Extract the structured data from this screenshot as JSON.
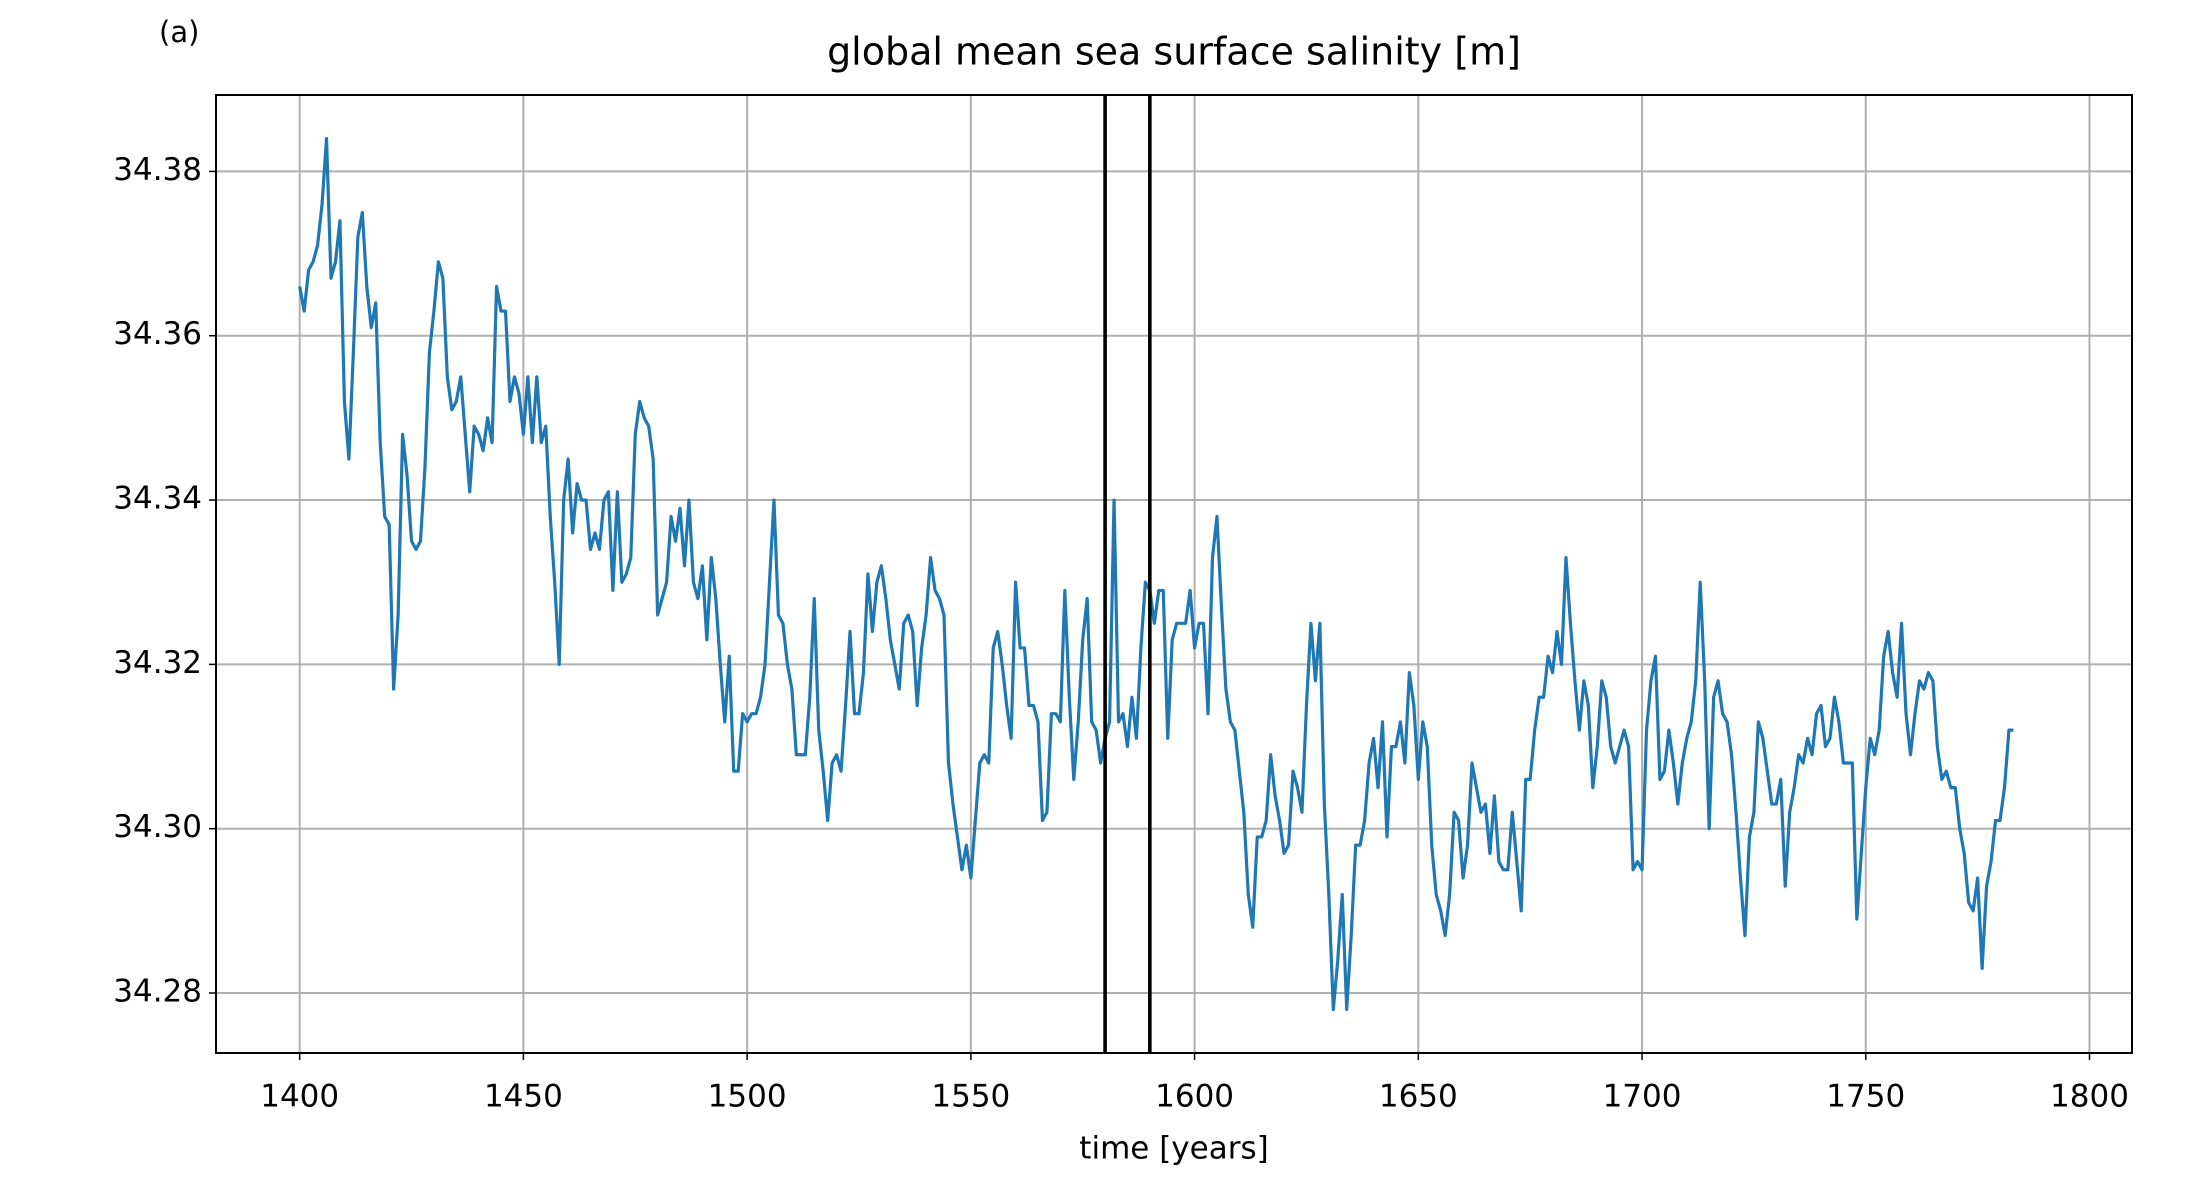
{
  "chart_data": {
    "type": "line",
    "title": "global mean sea surface salinity [m]",
    "panel_label": "(a)",
    "xlabel": "time [years]",
    "xlim": [
      1381.3,
      1809.5
    ],
    "ylim": [
      34.2727,
      34.3893
    ],
    "xticks": [
      1400,
      1450,
      1500,
      1550,
      1600,
      1650,
      1700,
      1750,
      1800
    ],
    "yticks": [
      34.28,
      {
        "value": 34.3,
        "label": "34.30"
      },
      34.32,
      34.34,
      34.36,
      34.38
    ],
    "grid": true,
    "vlines": [
      1580,
      1590
    ],
    "vline_color": "#000000",
    "x": [
      1400,
      1401,
      1402,
      1403,
      1404,
      1405,
      1406,
      1407,
      1408,
      1409,
      1410,
      1411,
      1412,
      1413,
      1414,
      1415,
      1416,
      1417,
      1418,
      1419,
      1420,
      1421,
      1422,
      1423,
      1424,
      1425,
      1426,
      1427,
      1428,
      1429,
      1430,
      1431,
      1432,
      1433,
      1434,
      1435,
      1436,
      1437,
      1438,
      1439,
      1440,
      1441,
      1442,
      1443,
      1444,
      1445,
      1446,
      1447,
      1448,
      1449,
      1450,
      1451,
      1452,
      1453,
      1454,
      1455,
      1456,
      1457,
      1458,
      1459,
      1460,
      1461,
      1462,
      1463,
      1464,
      1465,
      1466,
      1467,
      1468,
      1469,
      1470,
      1471,
      1472,
      1473,
      1474,
      1475,
      1476,
      1477,
      1478,
      1479,
      1480,
      1481,
      1482,
      1483,
      1484,
      1485,
      1486,
      1487,
      1488,
      1489,
      1490,
      1491,
      1492,
      1493,
      1494,
      1495,
      1496,
      1497,
      1498,
      1499,
      1500,
      1501,
      1502,
      1503,
      1504,
      1505,
      1506,
      1507,
      1508,
      1509,
      1510,
      1511,
      1512,
      1513,
      1514,
      1515,
      1516,
      1517,
      1518,
      1519,
      1520,
      1521,
      1522,
      1523,
      1524,
      1525,
      1526,
      1527,
      1528,
      1529,
      1530,
      1531,
      1532,
      1533,
      1534,
      1535,
      1536,
      1537,
      1538,
      1539,
      1540,
      1541,
      1542,
      1543,
      1544,
      1545,
      1546,
      1547,
      1548,
      1549,
      1550,
      1551,
      1552,
      1553,
      1554,
      1555,
      1556,
      1557,
      1558,
      1559,
      1560,
      1561,
      1562,
      1563,
      1564,
      1565,
      1566,
      1567,
      1568,
      1569,
      1570,
      1571,
      1572,
      1573,
      1574,
      1575,
      1576,
      1577,
      1578,
      1579,
      1580,
      1581,
      1582,
      1583,
      1584,
      1585,
      1586,
      1587,
      1588,
      1589,
      1590,
      1591,
      1592,
      1593,
      1594,
      1595,
      1596,
      1597,
      1598,
      1599,
      1600,
      1601,
      1602,
      1603,
      1604,
      1605,
      1606,
      1607,
      1608,
      1609,
      1610,
      1611,
      1612,
      1613,
      1614,
      1615,
      1616,
      1617,
      1618,
      1619,
      1620,
      1621,
      1622,
      1623,
      1624,
      1625,
      1626,
      1627,
      1628,
      1629,
      1630,
      1631,
      1632,
      1633,
      1634,
      1635,
      1636,
      1637,
      1638,
      1639,
      1640,
      1641,
      1642,
      1643,
      1644,
      1645,
      1646,
      1647,
      1648,
      1649,
      1650,
      1651,
      1652,
      1653,
      1654,
      1655,
      1656,
      1657,
      1658,
      1659,
      1660,
      1661,
      1662,
      1663,
      1664,
      1665,
      1666,
      1667,
      1668,
      1669,
      1670,
      1671,
      1672,
      1673,
      1674,
      1675,
      1676,
      1677,
      1678,
      1679,
      1680,
      1681,
      1682,
      1683,
      1684,
      1685,
      1686,
      1687,
      1688,
      1689,
      1690,
      1691,
      1692,
      1693,
      1694,
      1695,
      1696,
      1697,
      1698,
      1699,
      1700,
      1701,
      1702,
      1703,
      1704,
      1705,
      1706,
      1707,
      1708,
      1709,
      1710,
      1711,
      1712,
      1713,
      1714,
      1715,
      1716,
      1717,
      1718,
      1719,
      1720,
      1721,
      1722,
      1723,
      1724,
      1725,
      1726,
      1727,
      1728,
      1729,
      1730,
      1731,
      1732,
      1733,
      1734,
      1735,
      1736,
      1737,
      1738,
      1739,
      1740,
      1741,
      1742,
      1743,
      1744,
      1745,
      1746,
      1747,
      1748,
      1749,
      1750,
      1751,
      1752,
      1753,
      1754,
      1755,
      1756,
      1757,
      1758,
      1759,
      1760,
      1761,
      1762,
      1763,
      1764,
      1765,
      1766,
      1767,
      1768,
      1769,
      1770,
      1771,
      1772,
      1773,
      1774,
      1775,
      1776,
      1777,
      1778,
      1779,
      1780,
      1781,
      1782,
      1783
    ],
    "series": [
      {
        "color": "#1f77b4",
        "values": [
          34.366,
          34.363,
          34.368,
          34.369,
          34.371,
          34.376,
          34.384,
          34.367,
          34.369,
          34.374,
          34.352,
          34.345,
          34.358,
          34.372,
          34.375,
          34.366,
          34.361,
          34.364,
          34.347,
          34.338,
          34.337,
          34.317,
          34.326,
          34.348,
          34.343,
          34.335,
          34.334,
          34.335,
          34.344,
          34.358,
          34.363,
          34.369,
          34.367,
          34.355,
          34.351,
          34.352,
          34.355,
          34.348,
          34.341,
          34.349,
          34.348,
          34.346,
          34.35,
          34.347,
          34.366,
          34.363,
          34.363,
          34.352,
          34.355,
          34.353,
          34.348,
          34.355,
          34.347,
          34.355,
          34.347,
          34.349,
          34.338,
          34.33,
          34.32,
          34.34,
          34.345,
          34.336,
          34.342,
          34.34,
          34.34,
          34.334,
          34.336,
          34.334,
          34.34,
          34.341,
          34.329,
          34.341,
          34.33,
          34.331,
          34.333,
          34.348,
          34.352,
          34.35,
          34.349,
          34.345,
          34.326,
          34.328,
          34.33,
          34.338,
          34.335,
          34.339,
          34.332,
          34.34,
          34.33,
          34.328,
          34.332,
          34.323,
          34.333,
          34.328,
          34.32,
          34.313,
          34.321,
          34.307,
          34.307,
          34.314,
          34.313,
          34.314,
          34.314,
          34.316,
          34.32,
          34.33,
          34.34,
          34.326,
          34.325,
          34.32,
          34.317,
          34.309,
          34.309,
          34.309,
          34.316,
          34.328,
          34.312,
          34.307,
          34.301,
          34.308,
          34.309,
          34.307,
          34.315,
          34.324,
          34.314,
          34.314,
          34.319,
          34.331,
          34.324,
          34.33,
          34.332,
          34.328,
          34.323,
          34.32,
          34.317,
          34.325,
          34.326,
          34.324,
          34.315,
          34.322,
          34.326,
          34.333,
          34.329,
          34.328,
          34.326,
          34.308,
          34.303,
          34.299,
          34.295,
          34.298,
          34.294,
          34.301,
          34.308,
          34.309,
          34.308,
          34.322,
          34.324,
          34.32,
          34.315,
          34.311,
          34.33,
          34.322,
          34.322,
          34.315,
          34.315,
          34.313,
          34.301,
          34.302,
          34.314,
          34.314,
          34.313,
          34.329,
          34.316,
          34.306,
          34.313,
          34.323,
          34.328,
          34.313,
          34.312,
          34.308,
          34.311,
          34.313,
          34.34,
          34.313,
          34.314,
          34.31,
          34.316,
          34.311,
          34.322,
          34.33,
          34.329,
          34.325,
          34.329,
          34.329,
          34.311,
          34.323,
          34.325,
          34.325,
          34.325,
          34.329,
          34.322,
          34.325,
          34.325,
          34.314,
          34.333,
          34.338,
          34.327,
          34.317,
          34.313,
          34.312,
          34.307,
          34.302,
          34.292,
          34.288,
          34.299,
          34.299,
          34.301,
          34.309,
          34.304,
          34.301,
          34.297,
          34.298,
          34.307,
          34.305,
          34.302,
          34.315,
          34.325,
          34.318,
          34.325,
          34.303,
          34.292,
          34.278,
          34.284,
          34.292,
          34.278,
          34.287,
          34.298,
          34.298,
          34.301,
          34.308,
          34.311,
          34.305,
          34.313,
          34.299,
          34.31,
          34.31,
          34.313,
          34.308,
          34.319,
          34.315,
          34.306,
          34.313,
          34.31,
          34.298,
          34.292,
          34.29,
          34.287,
          34.292,
          34.302,
          34.301,
          34.294,
          34.298,
          34.308,
          34.305,
          34.302,
          34.303,
          34.297,
          34.304,
          34.296,
          34.295,
          34.295,
          34.302,
          34.296,
          34.29,
          34.306,
          34.306,
          34.312,
          34.316,
          34.316,
          34.321,
          34.319,
          34.324,
          34.32,
          34.333,
          34.325,
          34.318,
          34.312,
          34.318,
          34.315,
          34.305,
          34.31,
          34.318,
          34.316,
          34.31,
          34.308,
          34.31,
          34.312,
          34.31,
          34.295,
          34.296,
          34.295,
          34.312,
          34.318,
          34.321,
          34.306,
          34.307,
          34.312,
          34.308,
          34.303,
          34.308,
          34.311,
          34.313,
          34.318,
          34.33,
          34.318,
          34.3,
          34.316,
          34.318,
          34.314,
          34.313,
          34.309,
          34.302,
          34.294,
          34.287,
          34.299,
          34.302,
          34.313,
          34.311,
          34.307,
          34.303,
          34.303,
          34.306,
          34.293,
          34.302,
          34.305,
          34.309,
          34.308,
          34.311,
          34.309,
          34.314,
          34.315,
          34.31,
          34.311,
          34.316,
          34.313,
          34.308,
          34.308,
          34.308,
          34.289,
          34.297,
          34.305,
          34.311,
          34.309,
          34.312,
          34.321,
          34.324,
          34.319,
          34.316,
          34.325,
          34.314,
          34.309,
          34.314,
          34.318,
          34.317,
          34.319,
          34.318,
          34.31,
          34.306,
          34.307,
          34.305,
          34.305,
          34.3,
          34.297,
          34.291,
          34.29,
          34.294,
          34.283,
          34.293,
          34.296,
          34.301,
          34.301,
          34.305,
          34.312,
          34.312
        ]
      }
    ]
  }
}
